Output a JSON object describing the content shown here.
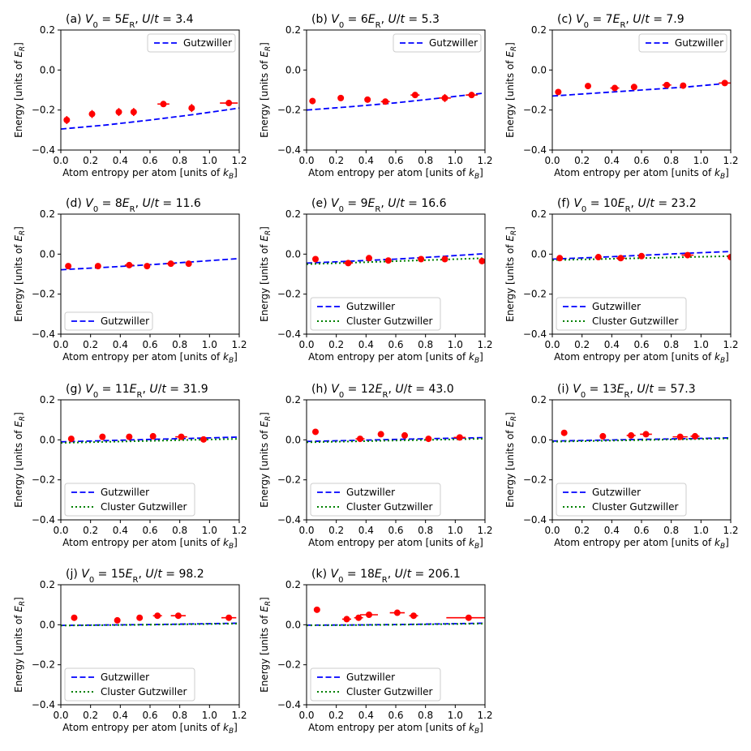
{
  "figure": {
    "xlabel": "Atom entropy per atom [units of k_B]",
    "ylabel": "Energy [units of E_R]"
  },
  "chart_data": [
    {
      "id": "a",
      "type": "line",
      "title": "(a) V0 = 5E_R, U/t = 3.4",
      "xlim": [
        0,
        1.2
      ],
      "ylim": [
        -0.4,
        0.2
      ],
      "xticks": [
        0.0,
        0.2,
        0.4,
        0.6,
        0.8,
        1.0,
        1.2
      ],
      "yticks": [
        -0.4,
        -0.2,
        0.0,
        0.2
      ],
      "legend_loc": "upper-right",
      "series": [
        {
          "name": "Gutzwiller",
          "x": [
            0,
            0.3,
            0.6,
            0.9,
            1.2
          ],
          "y": [
            -0.295,
            -0.275,
            -0.25,
            -0.222,
            -0.19
          ]
        }
      ],
      "experiment": [
        {
          "x": 0.04,
          "y": -0.25,
          "xerr": 0.01,
          "yerr": 0.02
        },
        {
          "x": 0.21,
          "y": -0.22,
          "xerr": 0.01,
          "yerr": 0.02
        },
        {
          "x": 0.39,
          "y": -0.21,
          "xerr": 0.02,
          "yerr": 0.02
        },
        {
          "x": 0.49,
          "y": -0.21,
          "xerr": 0.01,
          "yerr": 0.02
        },
        {
          "x": 0.69,
          "y": -0.17,
          "xerr": 0.04,
          "yerr": 0.01
        },
        {
          "x": 0.88,
          "y": -0.19,
          "xerr": 0.02,
          "yerr": 0.02
        },
        {
          "x": 1.13,
          "y": -0.165,
          "xerr": 0.06,
          "yerr": 0.015
        }
      ]
    },
    {
      "id": "b",
      "type": "line",
      "title": "(b) V0 = 6E_R, U/t = 5.3",
      "xlim": [
        0,
        1.2
      ],
      "ylim": [
        -0.4,
        0.2
      ],
      "xticks": [
        0.0,
        0.2,
        0.4,
        0.6,
        0.8,
        1.0,
        1.2
      ],
      "yticks": [
        -0.4,
        -0.2,
        0.0,
        0.2
      ],
      "legend_loc": "upper-right",
      "series": [
        {
          "name": "Gutzwiller",
          "x": [
            0,
            0.3,
            0.6,
            0.9,
            1.2
          ],
          "y": [
            -0.2,
            -0.183,
            -0.164,
            -0.14,
            -0.115
          ]
        }
      ],
      "experiment": [
        {
          "x": 0.04,
          "y": -0.155,
          "xerr": 0.01,
          "yerr": 0.015
        },
        {
          "x": 0.23,
          "y": -0.14,
          "xerr": 0.01,
          "yerr": 0.01
        },
        {
          "x": 0.41,
          "y": -0.148,
          "xerr": 0.02,
          "yerr": 0.015
        },
        {
          "x": 0.53,
          "y": -0.158,
          "xerr": 0.03,
          "yerr": 0.01
        },
        {
          "x": 0.73,
          "y": -0.125,
          "xerr": 0.03,
          "yerr": 0.01
        },
        {
          "x": 0.93,
          "y": -0.14,
          "xerr": 0.04,
          "yerr": 0.02
        },
        {
          "x": 1.11,
          "y": -0.125,
          "xerr": 0.04,
          "yerr": 0.01
        }
      ]
    },
    {
      "id": "c",
      "type": "line",
      "title": "(c) V0 = 7E_R, U/t = 7.9",
      "xlim": [
        0,
        1.2
      ],
      "ylim": [
        -0.4,
        0.2
      ],
      "xticks": [
        0.0,
        0.2,
        0.4,
        0.6,
        0.8,
        1.0,
        1.2
      ],
      "yticks": [
        -0.4,
        -0.2,
        0.0,
        0.2
      ],
      "legend_loc": "upper-right",
      "series": [
        {
          "name": "Gutzwiller",
          "x": [
            0,
            0.3,
            0.6,
            0.9,
            1.2
          ],
          "y": [
            -0.13,
            -0.115,
            -0.1,
            -0.085,
            -0.065
          ]
        }
      ],
      "experiment": [
        {
          "x": 0.04,
          "y": -0.11,
          "xerr": 0.01,
          "yerr": 0.01
        },
        {
          "x": 0.24,
          "y": -0.08,
          "xerr": 0.01,
          "yerr": 0.01
        },
        {
          "x": 0.42,
          "y": -0.09,
          "xerr": 0.03,
          "yerr": 0.01
        },
        {
          "x": 0.55,
          "y": -0.085,
          "xerr": 0.02,
          "yerr": 0.01
        },
        {
          "x": 0.77,
          "y": -0.075,
          "xerr": 0.03,
          "yerr": 0.01
        },
        {
          "x": 0.88,
          "y": -0.078,
          "xerr": 0.02,
          "yerr": 0.01
        },
        {
          "x": 1.16,
          "y": -0.065,
          "xerr": 0.04,
          "yerr": 0.01
        }
      ]
    },
    {
      "id": "d",
      "type": "line",
      "title": "(d) V0 = 8E_R, U/t = 11.6",
      "xlim": [
        0,
        1.2
      ],
      "ylim": [
        -0.4,
        0.2
      ],
      "xticks": [
        0.0,
        0.2,
        0.4,
        0.6,
        0.8,
        1.0,
        1.2
      ],
      "yticks": [
        -0.4,
        -0.2,
        0.0,
        0.2
      ],
      "legend_loc": "lower-left",
      "series": [
        {
          "name": "Gutzwiller",
          "x": [
            0,
            0.3,
            0.6,
            0.9,
            1.2
          ],
          "y": [
            -0.078,
            -0.066,
            -0.053,
            -0.038,
            -0.022
          ]
        }
      ],
      "experiment": [
        {
          "x": 0.05,
          "y": -0.06,
          "xerr": 0.01,
          "yerr": 0.01
        },
        {
          "x": 0.25,
          "y": -0.06,
          "xerr": 0.01,
          "yerr": 0.01
        },
        {
          "x": 0.46,
          "y": -0.055,
          "xerr": 0.03,
          "yerr": 0.01
        },
        {
          "x": 0.58,
          "y": -0.06,
          "xerr": 0.02,
          "yerr": 0.01
        },
        {
          "x": 0.74,
          "y": -0.048,
          "xerr": 0.03,
          "yerr": 0.01
        },
        {
          "x": 0.86,
          "y": -0.048,
          "xerr": 0.02,
          "yerr": 0.01
        }
      ]
    },
    {
      "id": "e",
      "type": "line",
      "title": "(e) V0 = 9E_R, U/t = 16.6",
      "xlim": [
        0,
        1.2
      ],
      "ylim": [
        -0.4,
        0.2
      ],
      "xticks": [
        0.0,
        0.2,
        0.4,
        0.6,
        0.8,
        1.0,
        1.2
      ],
      "yticks": [
        -0.4,
        -0.2,
        0.0,
        0.2
      ],
      "legend_loc": "lower-left",
      "series": [
        {
          "name": "Gutzwiller",
          "x": [
            0,
            0.3,
            0.6,
            0.9,
            1.2
          ],
          "y": [
            -0.045,
            -0.035,
            -0.025,
            -0.012,
            0.002
          ]
        },
        {
          "name": "Cluster Gutzwiller",
          "x": [
            0,
            0.3,
            0.6,
            0.9,
            1.2
          ],
          "y": [
            -0.05,
            -0.043,
            -0.035,
            -0.028,
            -0.02
          ]
        }
      ],
      "experiment": [
        {
          "x": 0.06,
          "y": -0.025,
          "xerr": 0.01,
          "yerr": 0.01
        },
        {
          "x": 0.28,
          "y": -0.045,
          "xerr": 0.03,
          "yerr": 0.01
        },
        {
          "x": 0.42,
          "y": -0.02,
          "xerr": 0.01,
          "yerr": 0.01
        },
        {
          "x": 0.55,
          "y": -0.032,
          "xerr": 0.02,
          "yerr": 0.01
        },
        {
          "x": 0.77,
          "y": -0.025,
          "xerr": 0.02,
          "yerr": 0.01
        },
        {
          "x": 0.93,
          "y": -0.025,
          "xerr": 0.02,
          "yerr": 0.01
        },
        {
          "x": 1.18,
          "y": -0.035,
          "xerr": 0.02,
          "yerr": 0.01
        }
      ]
    },
    {
      "id": "f",
      "type": "line",
      "title": "(f) V0 = 10E_R, U/t = 23.2",
      "xlim": [
        0,
        1.2
      ],
      "ylim": [
        -0.4,
        0.2
      ],
      "xticks": [
        0.0,
        0.2,
        0.4,
        0.6,
        0.8,
        1.0,
        1.2
      ],
      "yticks": [
        -0.4,
        -0.2,
        0.0,
        0.2
      ],
      "legend_loc": "lower-left",
      "series": [
        {
          "name": "Gutzwiller",
          "x": [
            0,
            0.3,
            0.6,
            0.9,
            1.2
          ],
          "y": [
            -0.025,
            -0.016,
            -0.006,
            0.004,
            0.013
          ]
        },
        {
          "name": "Cluster Gutzwiller",
          "x": [
            0,
            0.3,
            0.6,
            0.9,
            1.2
          ],
          "y": [
            -0.03,
            -0.025,
            -0.02,
            -0.015,
            -0.01
          ]
        }
      ],
      "experiment": [
        {
          "x": 0.05,
          "y": -0.02,
          "xerr": 0.01,
          "yerr": 0.01
        },
        {
          "x": 0.31,
          "y": -0.015,
          "xerr": 0.01,
          "yerr": 0.01
        },
        {
          "x": 0.46,
          "y": -0.02,
          "xerr": 0.03,
          "yerr": 0.01
        },
        {
          "x": 0.6,
          "y": -0.01,
          "xerr": 0.02,
          "yerr": 0.01
        },
        {
          "x": 0.91,
          "y": -0.005,
          "xerr": 0.04,
          "yerr": 0.01
        },
        {
          "x": 1.2,
          "y": -0.015,
          "xerr": 0.01,
          "yerr": 0.01
        }
      ]
    },
    {
      "id": "g",
      "type": "line",
      "title": "(g) V0 = 11E_R, U/t = 31.9",
      "xlim": [
        0,
        1.2
      ],
      "ylim": [
        -0.4,
        0.2
      ],
      "xticks": [
        0.0,
        0.2,
        0.4,
        0.6,
        0.8,
        1.0,
        1.2
      ],
      "yticks": [
        -0.4,
        -0.2,
        0.0,
        0.2
      ],
      "legend_loc": "lower-left",
      "series": [
        {
          "name": "Gutzwiller",
          "x": [
            0,
            0.3,
            0.6,
            0.9,
            1.2
          ],
          "y": [
            -0.01,
            -0.004,
            0.002,
            0.008,
            0.014
          ]
        },
        {
          "name": "Cluster Gutzwiller",
          "x": [
            0,
            0.3,
            0.6,
            0.9,
            1.2
          ],
          "y": [
            -0.015,
            -0.01,
            -0.005,
            0.0,
            0.005
          ]
        }
      ],
      "experiment": [
        {
          "x": 0.07,
          "y": 0.005,
          "xerr": 0.01,
          "yerr": 0.01
        },
        {
          "x": 0.28,
          "y": 0.015,
          "xerr": 0.01,
          "yerr": 0.01
        },
        {
          "x": 0.46,
          "y": 0.015,
          "xerr": 0.01,
          "yerr": 0.01
        },
        {
          "x": 0.62,
          "y": 0.018,
          "xerr": 0.02,
          "yerr": 0.01
        },
        {
          "x": 0.81,
          "y": 0.015,
          "xerr": 0.04,
          "yerr": 0.01
        },
        {
          "x": 0.96,
          "y": 0.002,
          "xerr": 0.02,
          "yerr": 0.01
        }
      ]
    },
    {
      "id": "h",
      "type": "line",
      "title": "(h) V0 = 12E_R, U/t = 43.0",
      "xlim": [
        0,
        1.2
      ],
      "ylim": [
        -0.4,
        0.2
      ],
      "xticks": [
        0.0,
        0.2,
        0.4,
        0.6,
        0.8,
        1.0,
        1.2
      ],
      "yticks": [
        -0.4,
        -0.2,
        0.0,
        0.2
      ],
      "legend_loc": "lower-left",
      "series": [
        {
          "name": "Gutzwiller",
          "x": [
            0,
            0.3,
            0.6,
            0.9,
            1.2
          ],
          "y": [
            -0.008,
            -0.003,
            0.002,
            0.007,
            0.011
          ]
        },
        {
          "name": "Cluster Gutzwiller",
          "x": [
            0,
            0.3,
            0.6,
            0.9,
            1.2
          ],
          "y": [
            -0.012,
            -0.008,
            -0.003,
            0.001,
            0.006
          ]
        }
      ],
      "experiment": [
        {
          "x": 0.06,
          "y": 0.04,
          "xerr": 0.01,
          "yerr": 0.01
        },
        {
          "x": 0.36,
          "y": 0.005,
          "xerr": 0.03,
          "yerr": 0.01
        },
        {
          "x": 0.5,
          "y": 0.028,
          "xerr": 0.01,
          "yerr": 0.01
        },
        {
          "x": 0.66,
          "y": 0.022,
          "xerr": 0.02,
          "yerr": 0.01
        },
        {
          "x": 0.82,
          "y": 0.005,
          "xerr": 0.02,
          "yerr": 0.01
        },
        {
          "x": 1.03,
          "y": 0.012,
          "xerr": 0.04,
          "yerr": 0.01
        }
      ]
    },
    {
      "id": "i",
      "type": "line",
      "title": "(i) V0 = 13E_R, U/t = 57.3",
      "xlim": [
        0,
        1.2
      ],
      "ylim": [
        -0.4,
        0.2
      ],
      "xticks": [
        0.0,
        0.2,
        0.4,
        0.6,
        0.8,
        1.0,
        1.2
      ],
      "yticks": [
        -0.4,
        -0.2,
        0.0,
        0.2
      ],
      "legend_loc": "lower-left",
      "series": [
        {
          "name": "Gutzwiller",
          "x": [
            0,
            0.3,
            0.6,
            0.9,
            1.2
          ],
          "y": [
            -0.006,
            -0.002,
            0.002,
            0.006,
            0.01
          ]
        },
        {
          "name": "Cluster Gutzwiller",
          "x": [
            0,
            0.3,
            0.6,
            0.9,
            1.2
          ],
          "y": [
            -0.009,
            -0.005,
            -0.001,
            0.003,
            0.007
          ]
        }
      ],
      "experiment": [
        {
          "x": 0.08,
          "y": 0.035,
          "xerr": 0.01,
          "yerr": 0.01
        },
        {
          "x": 0.34,
          "y": 0.018,
          "xerr": 0.01,
          "yerr": 0.01
        },
        {
          "x": 0.53,
          "y": 0.022,
          "xerr": 0.03,
          "yerr": 0.01
        },
        {
          "x": 0.63,
          "y": 0.028,
          "xerr": 0.04,
          "yerr": 0.01
        },
        {
          "x": 0.86,
          "y": 0.015,
          "xerr": 0.05,
          "yerr": 0.01
        },
        {
          "x": 0.96,
          "y": 0.018,
          "xerr": 0.03,
          "yerr": 0.01
        }
      ]
    },
    {
      "id": "j",
      "type": "line",
      "title": "(j) V0 = 15E_R, U/t = 98.2",
      "xlim": [
        0,
        1.2
      ],
      "ylim": [
        -0.4,
        0.2
      ],
      "xticks": [
        0.0,
        0.2,
        0.4,
        0.6,
        0.8,
        1.0,
        1.2
      ],
      "yticks": [
        -0.4,
        -0.2,
        0.0,
        0.2
      ],
      "legend_loc": "lower-left",
      "series": [
        {
          "name": "Gutzwiller",
          "x": [
            0,
            0.3,
            0.6,
            0.9,
            1.2
          ],
          "y": [
            -0.003,
            -0.001,
            0.001,
            0.004,
            0.008
          ]
        },
        {
          "name": "Cluster Gutzwiller",
          "x": [
            0,
            0.3,
            0.6,
            0.9,
            1.2
          ],
          "y": [
            -0.004,
            -0.002,
            0.0,
            0.003,
            0.006
          ]
        }
      ],
      "experiment": [
        {
          "x": 0.09,
          "y": 0.035,
          "xerr": 0.01,
          "yerr": 0.01
        },
        {
          "x": 0.38,
          "y": 0.022,
          "xerr": 0.02,
          "yerr": 0.01
        },
        {
          "x": 0.53,
          "y": 0.035,
          "xerr": 0.02,
          "yerr": 0.01
        },
        {
          "x": 0.65,
          "y": 0.045,
          "xerr": 0.03,
          "yerr": 0.01
        },
        {
          "x": 0.79,
          "y": 0.045,
          "xerr": 0.05,
          "yerr": 0.01
        },
        {
          "x": 1.13,
          "y": 0.035,
          "xerr": 0.05,
          "yerr": 0.01
        }
      ]
    },
    {
      "id": "k",
      "type": "line",
      "title": "(k) V0 = 18E_R, U/t = 206.1",
      "xlim": [
        0,
        1.2
      ],
      "ylim": [
        -0.4,
        0.2
      ],
      "xticks": [
        0.0,
        0.2,
        0.4,
        0.6,
        0.8,
        1.0,
        1.2
      ],
      "yticks": [
        -0.4,
        -0.2,
        0.0,
        0.2
      ],
      "legend_loc": "lower-left",
      "series": [
        {
          "name": "Gutzwiller",
          "x": [
            0,
            0.3,
            0.6,
            0.9,
            1.2
          ],
          "y": [
            -0.002,
            -0.001,
            0.001,
            0.004,
            0.008
          ]
        },
        {
          "name": "Cluster Gutzwiller",
          "x": [
            0,
            0.3,
            0.6,
            0.9,
            1.2
          ],
          "y": [
            -0.003,
            -0.002,
            0.0,
            0.003,
            0.006
          ]
        }
      ],
      "experiment": [
        {
          "x": 0.07,
          "y": 0.075,
          "xerr": 0.01,
          "yerr": 0.01
        },
        {
          "x": 0.27,
          "y": 0.028,
          "xerr": 0.03,
          "yerr": 0.01
        },
        {
          "x": 0.35,
          "y": 0.035,
          "xerr": 0.03,
          "yerr": 0.01
        },
        {
          "x": 0.42,
          "y": 0.05,
          "xerr": 0.06,
          "yerr": 0.01
        },
        {
          "x": 0.61,
          "y": 0.06,
          "xerr": 0.05,
          "yerr": 0.01
        },
        {
          "x": 0.72,
          "y": 0.045,
          "xerr": 0.03,
          "yerr": 0.01
        },
        {
          "x": 1.09,
          "y": 0.035,
          "xerr": 0.15,
          "yerr": 0.01
        }
      ]
    }
  ],
  "colors": {
    "gutzwiller": "#0000ff",
    "cluster_gutzwiller": "#008000",
    "experiment": "#ff0000"
  }
}
